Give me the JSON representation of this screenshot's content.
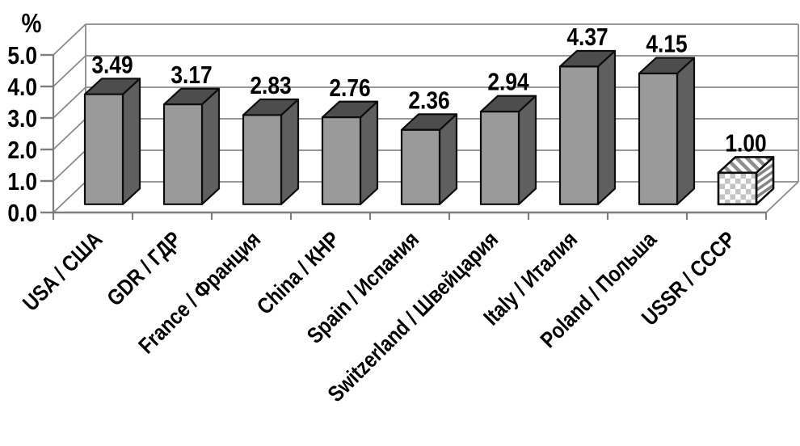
{
  "chart_data": {
    "type": "bar",
    "style": "3d",
    "title": "",
    "unit_label": "%",
    "categories": [
      "USA / США",
      "GDR / ГДР",
      "France / Франция",
      "China / КНР",
      "Spain / Испания",
      "Switzerland / Швейцария",
      "Italy / Италия",
      "Poland / Польша",
      "USSR / СССР"
    ],
    "category_slugs": [
      "usa",
      "gdr",
      "france",
      "china",
      "spain",
      "switzerland",
      "italy",
      "poland",
      "ussr"
    ],
    "values": [
      3.49,
      3.17,
      2.83,
      2.76,
      2.36,
      2.94,
      4.37,
      4.15,
      1.0
    ],
    "value_labels": [
      "3.49",
      "3.17",
      "2.83",
      "2.76",
      "2.36",
      "2.94",
      "4.37",
      "4.15",
      "1.00"
    ],
    "ylim": [
      0,
      5
    ],
    "ytick_step": 1.0,
    "ytick_labels": [
      "0.0",
      "1.0",
      "2.0",
      "3.0",
      "4.0",
      "5.0"
    ],
    "grid": true,
    "legend_position": "none",
    "xlabel": "",
    "ylabel": "%",
    "highlight": {
      "index": 8,
      "pattern": "checkered"
    }
  },
  "colors": {
    "background": "#ffffff",
    "bar_front": "#9a9a9a",
    "bar_side": "#5f5f5f",
    "bar_top": "#4d4d4d",
    "bar_outline": "#0d0d0d",
    "grid_line": "#8a8a8a",
    "axis_line": "#7d7d7d",
    "text": "#000000",
    "checker_light": "#ffffff",
    "checker_dark": "#c3c3c3",
    "hatch_top": "#8f8f8f",
    "hatch_side": "#858585"
  }
}
